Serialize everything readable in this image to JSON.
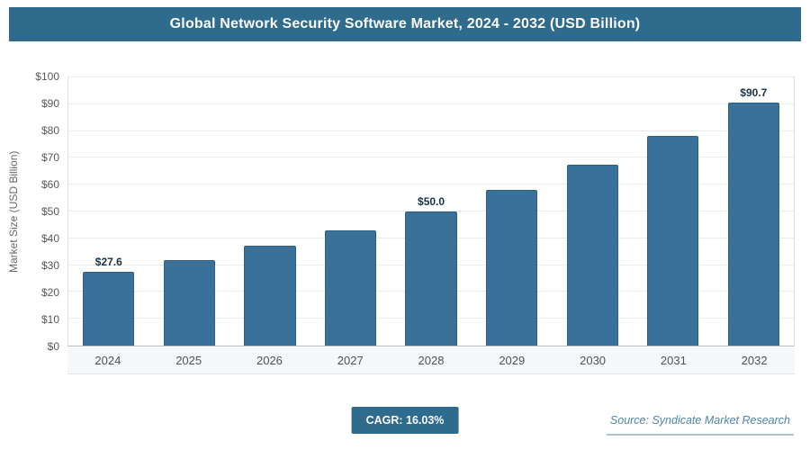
{
  "chart_data": {
    "type": "bar",
    "title": "Global Network Security Software Market, 2024 - 2032 (USD Billion)",
    "categories": [
      "2024",
      "2025",
      "2026",
      "2027",
      "2028",
      "2029",
      "2030",
      "2031",
      "2032"
    ],
    "values": [
      27.6,
      32.0,
      37.2,
      43.1,
      50.0,
      58.1,
      67.4,
      78.2,
      90.7
    ],
    "data_labels": {
      "2024": "$27.6",
      "2028": "$50.0",
      "2032": "$90.7"
    },
    "xlabel": "",
    "ylabel": "Market Size (USD Billion)",
    "ylim": [
      0,
      100
    ],
    "ytick_step": 10,
    "ytick_labels": [
      "$0",
      "$10",
      "$20",
      "$30",
      "$40",
      "$50",
      "$60",
      "$70",
      "$80",
      "$90",
      "$100"
    ],
    "grid": true,
    "legend": "none"
  },
  "footer": {
    "cagr_label": "CAGR: 16.03%",
    "source": "Source: Syndicate Market Research"
  },
  "colors": {
    "accent": "#2e6b8c",
    "bar_fill": "#3a7199",
    "bar_border": "#2d5f84",
    "source_text": "#4e87a6"
  }
}
